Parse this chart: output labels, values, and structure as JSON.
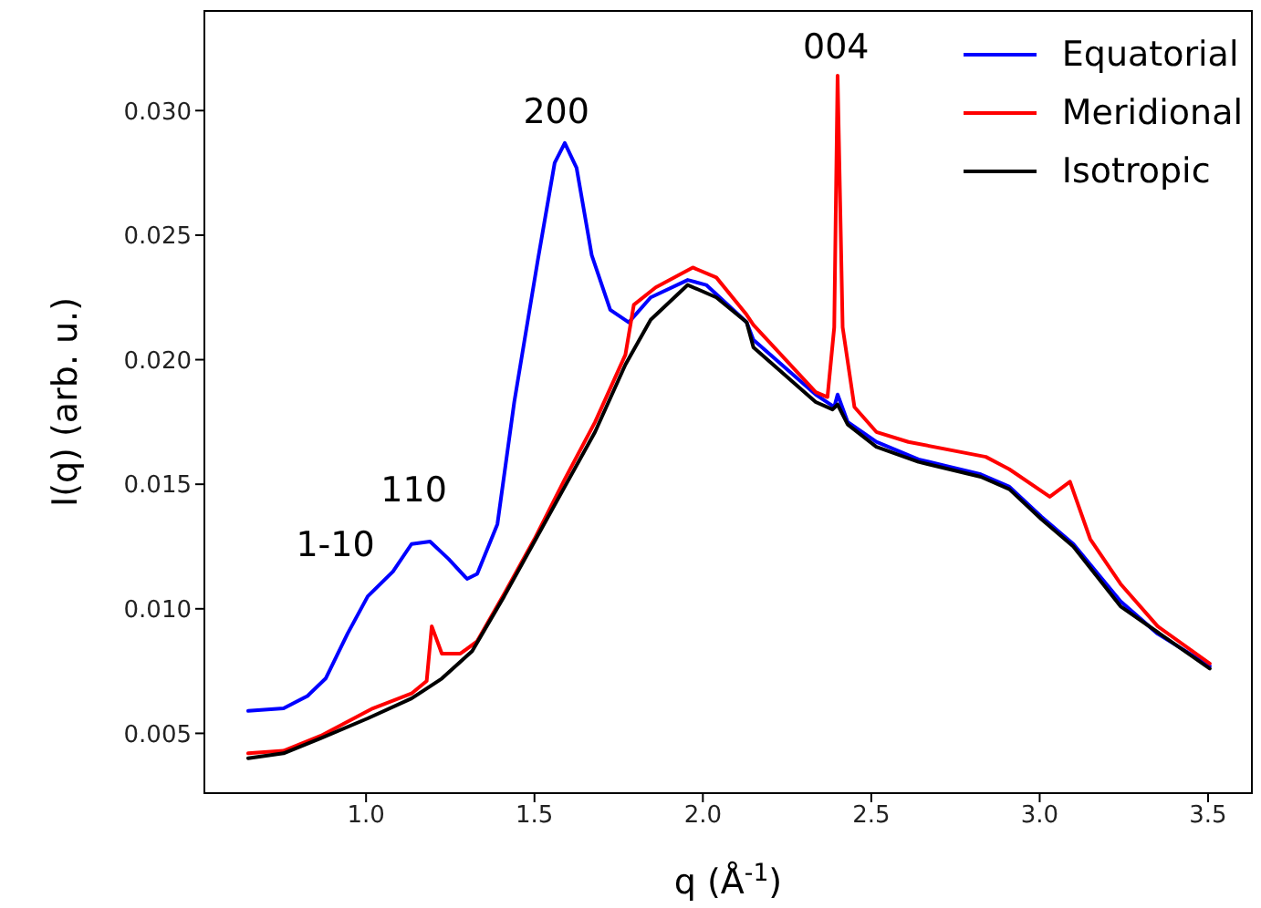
{
  "chart_data": {
    "type": "line",
    "xlabel": "q (Å$^{-1}$)",
    "ylabel": "I(q) (arb. u.)",
    "xlim": [
      0.52,
      3.63
    ],
    "ylim": [
      0.0026,
      0.034
    ],
    "xticks": [
      {
        "value": 1,
        "label": "1.0"
      },
      {
        "value": 1.5,
        "label": "1.5"
      },
      {
        "value": 2,
        "label": "2.0"
      },
      {
        "value": 2.5,
        "label": "2.5"
      },
      {
        "value": 3,
        "label": "3.0"
      },
      {
        "value": 3.5,
        "label": "3.5"
      }
    ],
    "yticks": [
      0.005,
      {
        "value": 0.01,
        "label": "0.010"
      },
      0.015,
      {
        "value": 0.02,
        "label": "0.020"
      },
      0.025,
      {
        "value": 0.03,
        "label": "0.030"
      }
    ],
    "grid": false,
    "legend": "top right",
    "marker": "none",
    "line_style": "solid",
    "annotations": [
      "1-10",
      "110",
      "200",
      "004"
    ],
    "series": [
      {
        "name": "Equatorial",
        "color": "#0000ff",
        "x": [
          0.65,
          0.755,
          0.826,
          0.88,
          0.945,
          1.005,
          1.08,
          1.135,
          1.19,
          1.245,
          1.3,
          1.33,
          1.39,
          1.44,
          1.51,
          1.56,
          1.59,
          1.625,
          1.67,
          1.725,
          1.78,
          1.845,
          1.955,
          2.01,
          2.13,
          2.15,
          2.335,
          2.39,
          2.4,
          2.43,
          2.515,
          2.64,
          2.825,
          2.91,
          3.005,
          3.1,
          3.24,
          3.35,
          3.505
        ],
        "values": [
          0.0059,
          0.006,
          0.0065,
          0.0072,
          0.009,
          0.0105,
          0.0115,
          0.0126,
          0.0127,
          0.012,
          0.0112,
          0.0114,
          0.0134,
          0.0183,
          0.024,
          0.0279,
          0.0287,
          0.0277,
          0.0242,
          0.022,
          0.0215,
          0.0225,
          0.0232,
          0.023,
          0.0215,
          0.0208,
          0.0186,
          0.0181,
          0.0186,
          0.0175,
          0.0167,
          0.016,
          0.0154,
          0.0149,
          0.0137,
          0.0126,
          0.0103,
          0.009,
          0.0077
        ]
      },
      {
        "name": "Meridional",
        "color": "#ff0000",
        "x": [
          0.65,
          0.755,
          0.865,
          1.02,
          1.135,
          1.18,
          1.195,
          1.225,
          1.28,
          1.33,
          1.41,
          1.5,
          1.59,
          1.68,
          1.77,
          1.795,
          1.86,
          1.97,
          2.04,
          2.13,
          2.15,
          2.335,
          2.37,
          2.39,
          2.4,
          2.415,
          2.45,
          2.515,
          2.61,
          2.84,
          2.91,
          3.03,
          3.09,
          3.15,
          3.24,
          3.35,
          3.505
        ],
        "values": [
          0.0042,
          0.0043,
          0.0049,
          0.006,
          0.0066,
          0.0071,
          0.0093,
          0.0082,
          0.0082,
          0.0087,
          0.0106,
          0.0128,
          0.0152,
          0.0175,
          0.0202,
          0.0222,
          0.0229,
          0.0237,
          0.0233,
          0.0218,
          0.0214,
          0.0187,
          0.0185,
          0.0213,
          0.0314,
          0.0213,
          0.0181,
          0.0171,
          0.0167,
          0.0161,
          0.0156,
          0.0145,
          0.0151,
          0.0128,
          0.011,
          0.0093,
          0.0078
        ]
      },
      {
        "name": "Isotropic",
        "color": "#000000",
        "x": [
          0.65,
          0.755,
          0.865,
          1.005,
          1.135,
          1.225,
          1.315,
          1.41,
          1.5,
          1.59,
          1.68,
          1.77,
          1.845,
          1.955,
          2.04,
          2.13,
          2.15,
          2.335,
          2.385,
          2.4,
          2.43,
          2.515,
          2.64,
          2.825,
          2.91,
          3.005,
          3.1,
          3.24,
          3.505
        ],
        "values": [
          0.004,
          0.0042,
          0.0048,
          0.0056,
          0.0064,
          0.0072,
          0.0083,
          0.0105,
          0.0127,
          0.0149,
          0.0171,
          0.0198,
          0.0216,
          0.023,
          0.0225,
          0.0215,
          0.0205,
          0.0183,
          0.018,
          0.0182,
          0.0174,
          0.0165,
          0.0159,
          0.0153,
          0.0148,
          0.0136,
          0.0125,
          0.0101,
          0.0076
        ]
      }
    ]
  }
}
